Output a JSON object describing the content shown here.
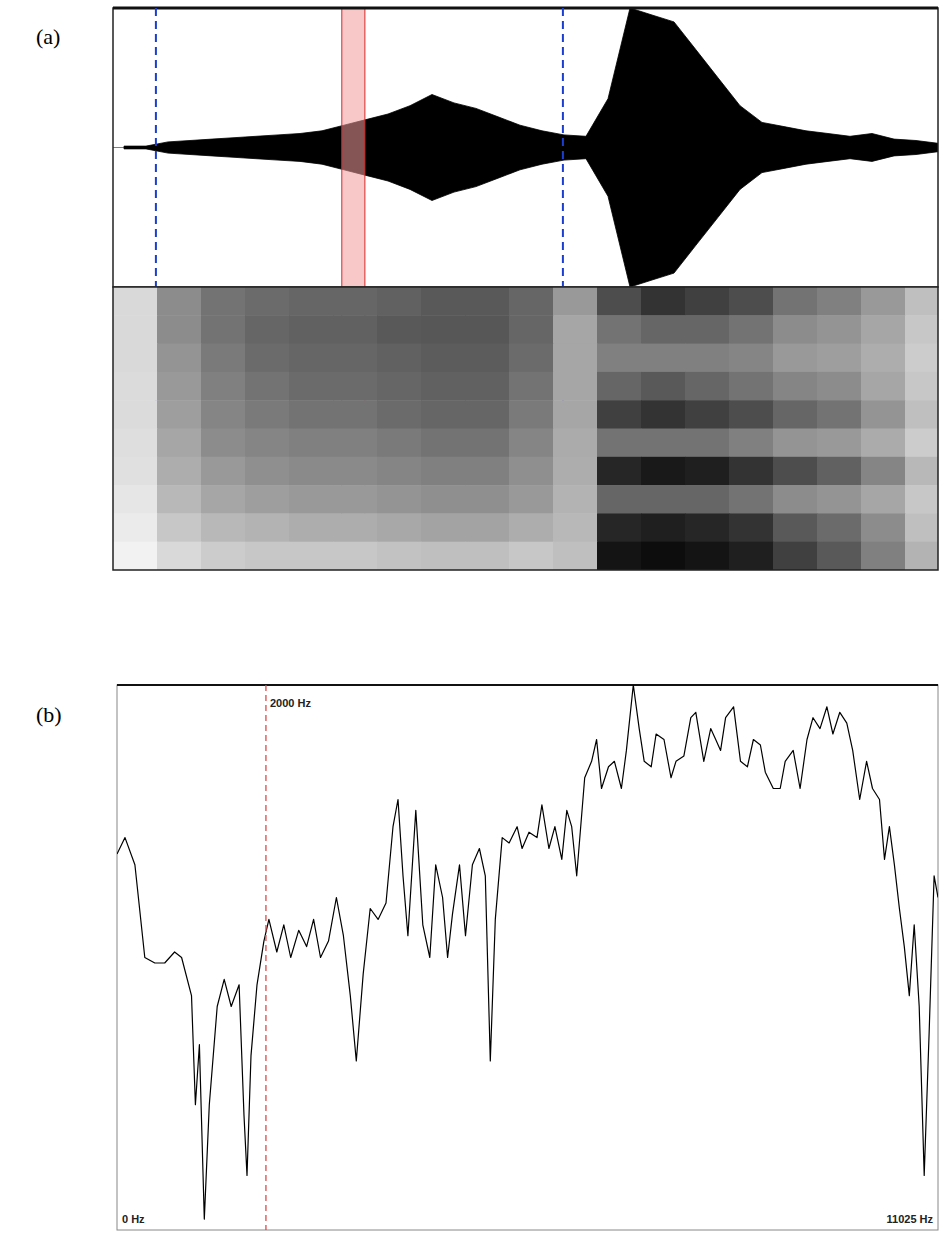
{
  "chart_data": [
    {
      "type": "area",
      "label": "(a)",
      "color": "#000000",
      "x": [
        0.01,
        0.03,
        0.05,
        0.07,
        0.09,
        0.11,
        0.13,
        0.15,
        0.17,
        0.19,
        0.21,
        0.23,
        0.25,
        0.27,
        0.29,
        0.31,
        0.33,
        0.35,
        0.37,
        0.39,
        0.41,
        0.43,
        0.45,
        0.47,
        0.49,
        0.51,
        0.53,
        0.55,
        0.57,
        0.59,
        0.61,
        0.63,
        0.65,
        0.67,
        0.69,
        0.71,
        0.73,
        0.75
      ],
      "values": [
        0.01,
        0.01,
        0.04,
        0.05,
        0.06,
        0.07,
        0.08,
        0.09,
        0.1,
        0.12,
        0.16,
        0.2,
        0.24,
        0.3,
        0.38,
        0.32,
        0.28,
        0.22,
        0.16,
        0.12,
        0.09,
        0.08,
        0.35,
        1.0,
        0.95,
        0.9,
        0.7,
        0.5,
        0.3,
        0.18,
        0.15,
        0.12,
        0.1,
        0.08,
        0.1,
        0.06,
        0.05,
        0.03
      ],
      "xlim": [
        0,
        0.75
      ],
      "ylim": [
        -1,
        1
      ],
      "tick_labels": false,
      "vlines": [
        0.039,
        0.409
      ],
      "highlight": [
        0.208,
        0.229
      ]
    },
    {
      "type": "heatmap",
      "x_edges": [
        0,
        0.04,
        0.08,
        0.12,
        0.16,
        0.2,
        0.24,
        0.28,
        0.32,
        0.36,
        0.4,
        0.44,
        0.48,
        0.52,
        0.56,
        0.6,
        0.64,
        0.68,
        0.72,
        0.76
      ],
      "xlim": [
        0,
        0.75
      ],
      "clim": [
        0,
        1
      ],
      "tick_labels": false,
      "cells": [
        [
          0.15,
          0.45,
          0.55,
          0.58,
          0.6,
          0.6,
          0.62,
          0.65,
          0.65,
          0.6,
          0.4,
          0.7,
          0.8,
          0.75,
          0.7,
          0.55,
          0.5,
          0.4,
          0.25
        ],
        [
          0.15,
          0.45,
          0.55,
          0.6,
          0.62,
          0.62,
          0.65,
          0.66,
          0.66,
          0.6,
          0.35,
          0.55,
          0.6,
          0.6,
          0.55,
          0.45,
          0.42,
          0.35,
          0.22
        ],
        [
          0.15,
          0.42,
          0.52,
          0.58,
          0.6,
          0.6,
          0.62,
          0.64,
          0.64,
          0.58,
          0.35,
          0.5,
          0.5,
          0.5,
          0.48,
          0.4,
          0.38,
          0.32,
          0.2
        ],
        [
          0.14,
          0.4,
          0.5,
          0.55,
          0.58,
          0.58,
          0.6,
          0.62,
          0.62,
          0.55,
          0.35,
          0.6,
          0.65,
          0.6,
          0.55,
          0.48,
          0.45,
          0.35,
          0.22
        ],
        [
          0.14,
          0.38,
          0.48,
          0.52,
          0.55,
          0.55,
          0.58,
          0.6,
          0.6,
          0.52,
          0.35,
          0.75,
          0.8,
          0.75,
          0.7,
          0.6,
          0.55,
          0.42,
          0.25
        ],
        [
          0.13,
          0.35,
          0.45,
          0.48,
          0.5,
          0.5,
          0.52,
          0.55,
          0.55,
          0.48,
          0.33,
          0.55,
          0.55,
          0.55,
          0.5,
          0.42,
          0.4,
          0.33,
          0.2
        ],
        [
          0.12,
          0.32,
          0.4,
          0.44,
          0.46,
          0.46,
          0.48,
          0.5,
          0.5,
          0.44,
          0.32,
          0.85,
          0.9,
          0.88,
          0.8,
          0.7,
          0.62,
          0.48,
          0.28
        ],
        [
          0.1,
          0.28,
          0.35,
          0.38,
          0.4,
          0.4,
          0.42,
          0.44,
          0.44,
          0.4,
          0.3,
          0.6,
          0.6,
          0.6,
          0.55,
          0.45,
          0.42,
          0.35,
          0.22
        ],
        [
          0.08,
          0.22,
          0.28,
          0.3,
          0.32,
          0.32,
          0.34,
          0.36,
          0.36,
          0.32,
          0.28,
          0.85,
          0.88,
          0.85,
          0.8,
          0.65,
          0.58,
          0.45,
          0.25
        ],
        [
          0.05,
          0.15,
          0.2,
          0.22,
          0.22,
          0.22,
          0.24,
          0.25,
          0.25,
          0.22,
          0.25,
          0.92,
          0.95,
          0.92,
          0.88,
          0.75,
          0.65,
          0.5,
          0.3
        ]
      ]
    },
    {
      "type": "line",
      "label": "(b)",
      "color": "#000000",
      "x": [
        0,
        107,
        240,
        373,
        507,
        640,
        773,
        867,
        1000,
        1053,
        1106,
        1173,
        1240,
        1346,
        1440,
        1533,
        1640,
        1706,
        1746,
        1800,
        1880,
        1973,
        2040,
        2146,
        2240,
        2333,
        2440,
        2546,
        2640,
        2733,
        2840,
        2946,
        3040,
        3133,
        3213,
        3306,
        3400,
        3506,
        3613,
        3706,
        3773,
        3840,
        3906,
        4013,
        4106,
        4200,
        4280,
        4373,
        4440,
        4506,
        4600,
        4680,
        4773,
        4866,
        4946,
        5013,
        5080,
        5173,
        5266,
        5373,
        5440,
        5533,
        5640,
        5706,
        5800,
        5880,
        5973,
        6040,
        6106,
        6173,
        6280,
        6373,
        6440,
        6506,
        6600,
        6680,
        6773,
        6840,
        6933,
        7013,
        7080,
        7173,
        7240,
        7346,
        7440,
        7506,
        7613,
        7706,
        7773,
        7880,
        7973,
        8040,
        8106,
        8173,
        8280,
        8373,
        8466,
        8546,
        8640,
        8706,
        8813,
        8906,
        8973,
        9080,
        9173,
        9266,
        9346,
        9440,
        9533,
        9613,
        9706,
        9800,
        9880,
        9973,
        10066,
        10146,
        10240,
        10306,
        10373,
        10440,
        10506,
        10573,
        10640,
        10706,
        10773,
        10840,
        10906,
        10973,
        11025
      ],
      "values": [
        69,
        72,
        67,
        50,
        49,
        49,
        51,
        50,
        43,
        23,
        34,
        2,
        23,
        41,
        46,
        41,
        45,
        21,
        10,
        32,
        45,
        53,
        57,
        51,
        56,
        50,
        55,
        52,
        57,
        50,
        53,
        61,
        54,
        43,
        31,
        47,
        59,
        57,
        60,
        74,
        79,
        65,
        54,
        77,
        56,
        50,
        67,
        61,
        50,
        58,
        67,
        54,
        67,
        70,
        65,
        31,
        57,
        72,
        71,
        74,
        70,
        73,
        72,
        78,
        70,
        74,
        68,
        77,
        74,
        65,
        83,
        86,
        90,
        81,
        85,
        86,
        81,
        88,
        100,
        92,
        86,
        85,
        91,
        90,
        83,
        86,
        87,
        94,
        95,
        86,
        92,
        90,
        88,
        94,
        96,
        86,
        85,
        90,
        89,
        84,
        81,
        81,
        86,
        88,
        81,
        90,
        94,
        92,
        96,
        91,
        95,
        93,
        88,
        79,
        86,
        81,
        79,
        68,
        74,
        67,
        59,
        52,
        43,
        56,
        41,
        10,
        36,
        65,
        61
      ],
      "xlim": [
        0,
        11025
      ],
      "ylim": [
        0,
        100
      ],
      "xticks": [
        {
          "value": 0,
          "label": "0 Hz"
        },
        {
          "value": 11025,
          "label": "11025 Hz"
        }
      ],
      "tick_labels": "x",
      "annotations": [
        {
          "x": 2000,
          "text": "2000 Hz"
        }
      ]
    }
  ]
}
